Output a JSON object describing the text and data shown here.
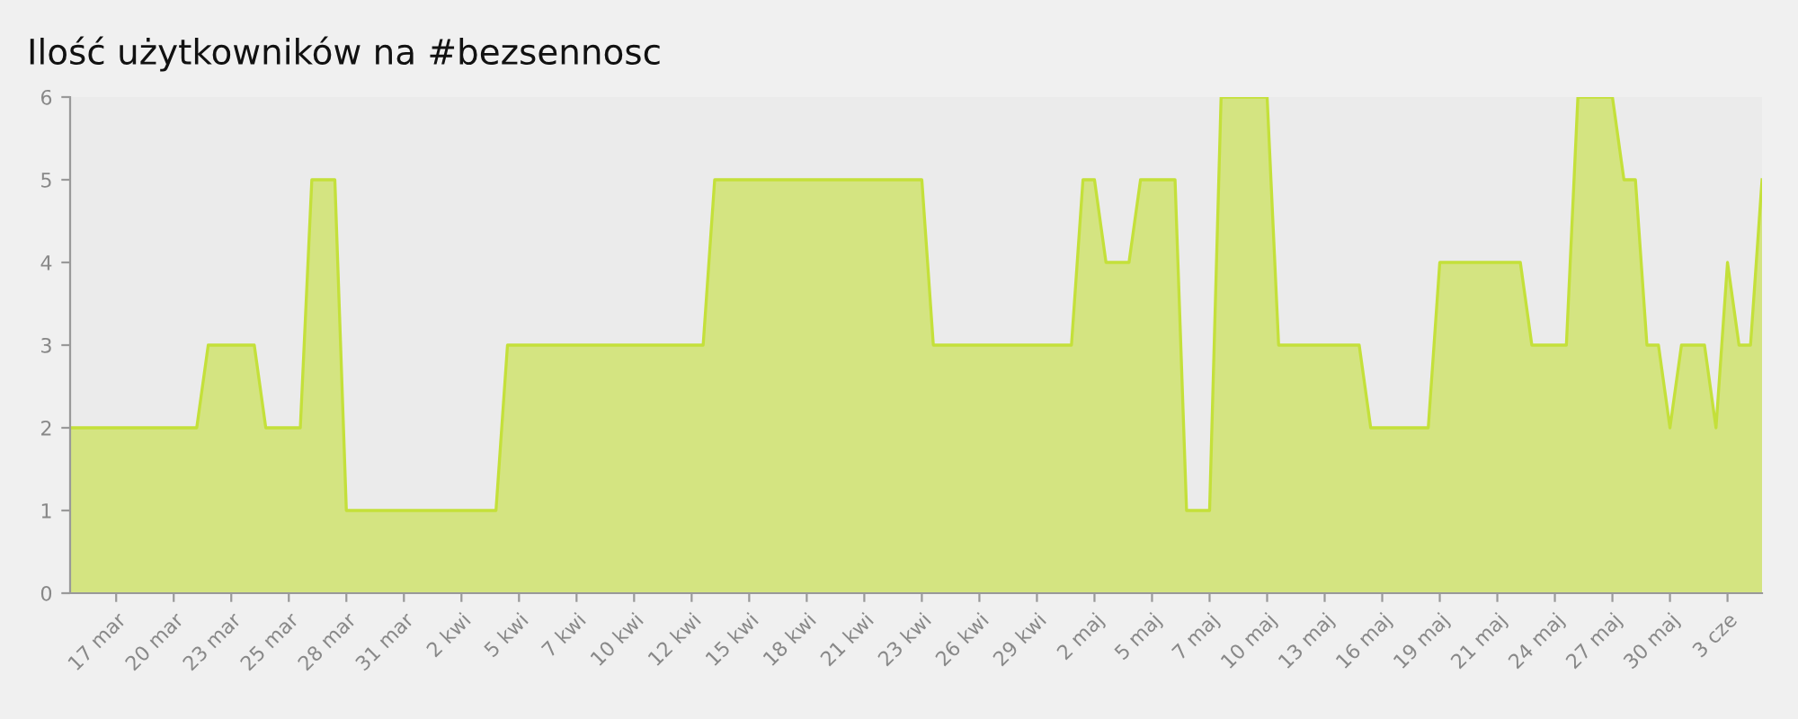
{
  "chart_data": {
    "type": "area",
    "title": "Ilość użytkowników na #bezsennosc",
    "categories": [
      null,
      null,
      null,
      null,
      "17 mar",
      null,
      null,
      null,
      null,
      "20 mar",
      null,
      null,
      null,
      null,
      "23 mar",
      null,
      null,
      null,
      null,
      "25 mar",
      null,
      null,
      null,
      null,
      "28 mar",
      null,
      null,
      null,
      null,
      "31 mar",
      null,
      null,
      null,
      null,
      "2 kwi",
      null,
      null,
      null,
      null,
      "5 kwi",
      null,
      null,
      null,
      null,
      "7 kwi",
      null,
      null,
      null,
      null,
      "10 kwi",
      null,
      null,
      null,
      null,
      "12 kwi",
      null,
      null,
      null,
      null,
      "15 kwi",
      null,
      null,
      null,
      null,
      "18 kwi",
      null,
      null,
      null,
      null,
      "21 kwi",
      null,
      null,
      null,
      null,
      "23 kwi",
      null,
      null,
      null,
      null,
      "26 kwi",
      null,
      null,
      null,
      null,
      "29 kwi",
      null,
      null,
      null,
      null,
      "2 maj",
      null,
      null,
      null,
      null,
      "5 maj",
      null,
      null,
      null,
      null,
      "7 maj",
      null,
      null,
      null,
      null,
      "10 maj",
      null,
      null,
      null,
      null,
      "13 maj",
      null,
      null,
      null,
      null,
      "16 maj",
      null,
      null,
      null,
      null,
      "19 maj",
      null,
      null,
      null,
      null,
      "21 maj",
      null,
      null,
      null,
      null,
      "24 maj",
      null,
      null,
      null,
      null,
      "27 maj",
      null,
      null,
      null,
      null,
      "30 maj",
      null,
      null,
      null,
      null,
      "3 cze",
      null,
      null,
      null
    ],
    "series": [
      {
        "color": "#c4e03a",
        "values": [
          2,
          2,
          2,
          2,
          2,
          2,
          2,
          2,
          2,
          2,
          2,
          2,
          3,
          3,
          3,
          3,
          3,
          2,
          2,
          2,
          2,
          5,
          5,
          5,
          1,
          1,
          1,
          1,
          1,
          1,
          1,
          1,
          1,
          1,
          1,
          1,
          1,
          1,
          3,
          3,
          3,
          3,
          3,
          3,
          3,
          3,
          3,
          3,
          3,
          3,
          3,
          3,
          3,
          3,
          3,
          3,
          5,
          5,
          5,
          5,
          5,
          5,
          5,
          5,
          5,
          5,
          5,
          5,
          5,
          5,
          5,
          5,
          5,
          5,
          5,
          3,
          3,
          3,
          3,
          3,
          3,
          3,
          3,
          3,
          3,
          3,
          3,
          3,
          5,
          5,
          4,
          4,
          4,
          5,
          5,
          5,
          5,
          1,
          1,
          1,
          6,
          6,
          6,
          6,
          6,
          3,
          3,
          3,
          3,
          3,
          3,
          3,
          3,
          2,
          2,
          2,
          2,
          2,
          2,
          4,
          4,
          4,
          4,
          4,
          4,
          4,
          4,
          3,
          3,
          3,
          3,
          6,
          6,
          6,
          6,
          5,
          5,
          3,
          3,
          2,
          3,
          3,
          3,
          2,
          4,
          3,
          3,
          5
        ]
      }
    ],
    "ylim": [
      0,
      6
    ],
    "yticks": [
      0,
      1,
      2,
      3,
      4,
      5,
      6
    ],
    "grid": false,
    "legend": false
  }
}
